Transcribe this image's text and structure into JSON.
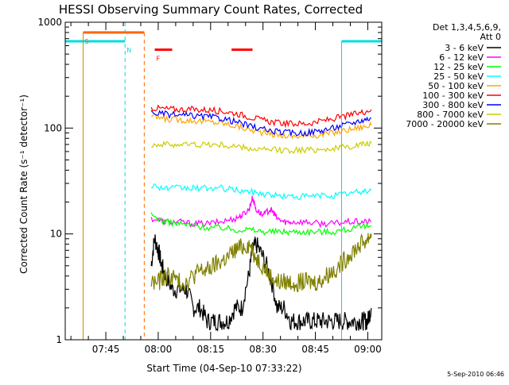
{
  "chart_data": {
    "type": "line",
    "title": "HESSI Observing Summary Count Rates, Corrected",
    "ylabel": "Corrected Count Rate (s⁻¹ detector⁻¹)",
    "xlabel": "Start Time (04-Sep-10 07:33:22)",
    "y_scale": "log",
    "ylim": [
      1,
      1000
    ],
    "xlim_minutes_after_0730": [
      3.37,
      94.0
    ],
    "x_start": "07:33:22",
    "y_ticks": [
      {
        "value": 1,
        "label": "1"
      },
      {
        "value": 10,
        "label": "10"
      },
      {
        "value": 100,
        "label": "100"
      },
      {
        "value": 1000,
        "label": "1000"
      }
    ],
    "x_ticks": [
      {
        "value": 15,
        "label": "07:45"
      },
      {
        "value": 30,
        "label": "08:00"
      },
      {
        "value": 45,
        "label": "08:15"
      },
      {
        "value": 60,
        "label": "08:30"
      },
      {
        "value": 75,
        "label": "08:45"
      },
      {
        "value": 90,
        "label": "09:00"
      }
    ],
    "legend": {
      "placement": "right",
      "header": [
        "Det 1,3,4,5,6,9,",
        "Att 0"
      ]
    },
    "series": [
      {
        "name": "3 - 6 keV",
        "color": "#000000",
        "x": [
          28,
          29,
          30,
          31,
          32,
          34,
          36,
          38,
          40,
          42,
          44,
          46,
          48,
          50,
          52,
          54,
          56,
          57,
          58,
          60,
          62,
          64,
          66,
          68,
          70,
          72,
          74,
          76,
          78,
          80,
          82,
          84,
          86,
          88,
          89,
          90,
          91
        ],
        "y": [
          5,
          9,
          7,
          5,
          4,
          3,
          3,
          3,
          2,
          2,
          1.5,
          1.5,
          1.5,
          1.5,
          2,
          2,
          4,
          7,
          8,
          6,
          4,
          2,
          2,
          1.5,
          1.5,
          1.5,
          1.5,
          1.5,
          1.5,
          1.5,
          1.5,
          1.5,
          1.5,
          1.5,
          1.5,
          1.5,
          2
        ]
      },
      {
        "name": "6 - 12 keV",
        "color": "#ff00ff",
        "x": [
          28,
          32,
          36,
          40,
          44,
          48,
          52,
          54,
          56,
          57,
          58,
          60,
          62,
          63,
          64,
          66,
          68,
          72,
          76,
          80,
          84,
          88,
          91
        ],
        "y": [
          14,
          13,
          13,
          12.5,
          12.5,
          13,
          14,
          15,
          17,
          22,
          17,
          15,
          17,
          16,
          14,
          13,
          13,
          13,
          12.5,
          12.5,
          13,
          13,
          13
        ]
      },
      {
        "name": "12 - 25 keV",
        "color": "#00ff00",
        "x": [
          28,
          32,
          36,
          40,
          44,
          48,
          52,
          56,
          60,
          64,
          68,
          72,
          76,
          80,
          84,
          88,
          91
        ],
        "y": [
          15,
          13,
          12.5,
          12,
          11.5,
          11.5,
          11,
          11,
          10.5,
          10.5,
          10.5,
          10.5,
          10.5,
          10.5,
          11,
          11.5,
          12
        ]
      },
      {
        "name": "25 - 50 keV",
        "color": "#00ffff",
        "x": [
          28,
          32,
          36,
          40,
          44,
          48,
          52,
          56,
          60,
          64,
          68,
          72,
          76,
          80,
          84,
          88,
          91
        ],
        "y": [
          29,
          27,
          27,
          27,
          27,
          27,
          26,
          25,
          24,
          23,
          22.5,
          22.5,
          23,
          23,
          24,
          25,
          26
        ]
      },
      {
        "name": "50 - 100 keV",
        "color": "#ffa500",
        "x": [
          28,
          32,
          36,
          40,
          44,
          48,
          52,
          56,
          60,
          64,
          68,
          72,
          76,
          80,
          84,
          88,
          91
        ],
        "y": [
          130,
          122,
          120,
          118,
          115,
          112,
          105,
          97,
          90,
          86,
          84,
          84,
          86,
          90,
          96,
          102,
          106
        ]
      },
      {
        "name": "100 - 300 keV",
        "color": "#ff0000",
        "x": [
          28,
          32,
          36,
          40,
          44,
          48,
          52,
          56,
          60,
          64,
          68,
          72,
          76,
          80,
          84,
          88,
          91
        ],
        "y": [
          155,
          152,
          150,
          150,
          148,
          145,
          138,
          128,
          118,
          112,
          110,
          110,
          115,
          122,
          130,
          140,
          150
        ]
      },
      {
        "name": "300 - 800 keV",
        "color": "#0000ff",
        "x": [
          28,
          32,
          36,
          40,
          44,
          48,
          52,
          56,
          60,
          64,
          68,
          72,
          76,
          80,
          84,
          88,
          91
        ],
        "y": [
          140,
          135,
          132,
          130,
          128,
          124,
          115,
          105,
          97,
          92,
          90,
          90,
          94,
          100,
          108,
          118,
          125
        ]
      },
      {
        "name": "800 - 7000 keV",
        "color": "#cccc00",
        "x": [
          28,
          32,
          36,
          40,
          44,
          48,
          52,
          56,
          60,
          64,
          68,
          72,
          76,
          80,
          84,
          88,
          91
        ],
        "y": [
          70,
          70,
          70,
          70,
          70,
          69,
          67,
          64,
          62,
          62,
          62,
          62,
          63,
          64,
          66,
          70,
          72
        ]
      },
      {
        "name": "7000 - 20000 keV",
        "color": "#808000",
        "x": [
          28,
          30,
          32,
          34,
          36,
          38,
          40,
          42,
          44,
          46,
          48,
          50,
          52,
          54,
          56,
          58,
          60,
          62,
          64,
          66,
          68,
          70,
          72,
          74,
          76,
          78,
          80,
          82,
          84,
          86,
          88,
          90,
          91
        ],
        "y": [
          3.5,
          3.5,
          4,
          4,
          3.5,
          3.5,
          4,
          4.5,
          4.5,
          5,
          5.5,
          6,
          7,
          7.5,
          8,
          6,
          5,
          4,
          3.5,
          3.5,
          3.5,
          3.5,
          3.5,
          3.5,
          3.5,
          4,
          4.5,
          5,
          6,
          7,
          8,
          9,
          10
        ]
      }
    ],
    "annotations": [
      {
        "label": "S",
        "color": "#ff6600",
        "x_start": 8.5,
        "x_end": 26,
        "y": 800,
        "marker_x": 8.5
      },
      {
        "label": "N",
        "color": "#00dddd",
        "x_start": 20.5,
        "x_end": 20.5,
        "y": 660
      },
      {
        "label": "F",
        "color": "#ff0000",
        "x_start": 29,
        "x_end": 34,
        "y": 550
      },
      {
        "label": "",
        "color": "#ff0000",
        "x_start": 51,
        "x_end": 57,
        "y": 550
      }
    ],
    "saa_intervals": [
      {
        "color": "#00dddd",
        "x_start": 3.37,
        "x_end": 20.5,
        "level": 660
      },
      {
        "color": "#00dddd",
        "x_start": 82.5,
        "x_end": 94,
        "level": 660
      }
    ],
    "footer_date": "5-Sep-2010 06:46"
  }
}
